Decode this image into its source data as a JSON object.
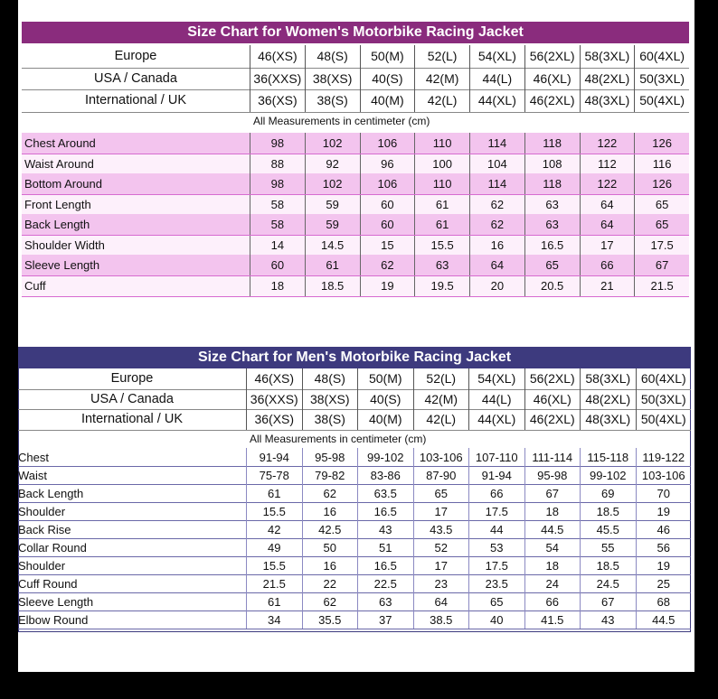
{
  "women": {
    "title": "Size Chart for Women's Motorbike Racing Jacket",
    "header_rows": [
      {
        "label": "Europe",
        "sizes": [
          "46(XS)",
          "48(S)",
          "50(M)",
          "52(L)",
          "54(XL)",
          "56(2XL)",
          "58(3XL)",
          "60(4XL)"
        ]
      },
      {
        "label": "USA / Canada",
        "sizes": [
          "36(XXS)",
          "38(XS)",
          "40(S)",
          "42(M)",
          "44(L)",
          "46(XL)",
          "48(2XL)",
          "50(3XL)"
        ]
      },
      {
        "label": "International / UK",
        "sizes": [
          "36(XS)",
          "38(S)",
          "40(M)",
          "42(L)",
          "44(XL)",
          "46(2XL)",
          "48(3XL)",
          "50(4XL)"
        ]
      }
    ],
    "note": "All Measurements in centimeter (cm)",
    "rows": [
      {
        "label": "Chest Around",
        "values": [
          "98",
          "102",
          "106",
          "110",
          "114",
          "118",
          "122",
          "126"
        ]
      },
      {
        "label": "Waist Around",
        "values": [
          "88",
          "92",
          "96",
          "100",
          "104",
          "108",
          "112",
          "116"
        ]
      },
      {
        "label": "Bottom Around",
        "values": [
          "98",
          "102",
          "106",
          "110",
          "114",
          "118",
          "122",
          "126"
        ]
      },
      {
        "label": "Front Length",
        "values": [
          "58",
          "59",
          "60",
          "61",
          "62",
          "63",
          "64",
          "65"
        ]
      },
      {
        "label": "Back Length",
        "values": [
          "58",
          "59",
          "60",
          "61",
          "62",
          "63",
          "64",
          "65"
        ]
      },
      {
        "label": "Shoulder Width",
        "values": [
          "14",
          "14.5",
          "15",
          "15.5",
          "16",
          "16.5",
          "17",
          "17.5"
        ]
      },
      {
        "label": "Sleeve Length",
        "values": [
          "60",
          "61",
          "62",
          "63",
          "64",
          "65",
          "66",
          "67"
        ]
      },
      {
        "label": "Cuff",
        "values": [
          "18",
          "18.5",
          "19",
          "19.5",
          "20",
          "20.5",
          "21",
          "21.5"
        ]
      }
    ]
  },
  "men": {
    "title": "Size Chart for Men's Motorbike Racing Jacket",
    "header_rows": [
      {
        "label": "Europe",
        "sizes": [
          "46(XS)",
          "48(S)",
          "50(M)",
          "52(L)",
          "54(XL)",
          "56(2XL)",
          "58(3XL)",
          "60(4XL)"
        ]
      },
      {
        "label": "USA / Canada",
        "sizes": [
          "36(XXS)",
          "38(XS)",
          "40(S)",
          "42(M)",
          "44(L)",
          "46(XL)",
          "48(2XL)",
          "50(3XL)"
        ]
      },
      {
        "label": "International / UK",
        "sizes": [
          "36(XS)",
          "38(S)",
          "40(M)",
          "42(L)",
          "44(XL)",
          "46(2XL)",
          "48(3XL)",
          "50(4XL)"
        ]
      }
    ],
    "note": "All Measurements in centimeter (cm)",
    "rows": [
      {
        "label": "Chest",
        "values": [
          "91-94",
          "95-98",
          "99-102",
          "103-106",
          "107-110",
          "111-114",
          "115-118",
          "119-122"
        ]
      },
      {
        "label": "Waist",
        "values": [
          "75-78",
          "79-82",
          "83-86",
          "87-90",
          "91-94",
          "95-98",
          "99-102",
          "103-106"
        ]
      },
      {
        "label": "Back Length",
        "values": [
          "61",
          "62",
          "63.5",
          "65",
          "66",
          "67",
          "69",
          "70"
        ]
      },
      {
        "label": "Shoulder",
        "values": [
          "15.5",
          "16",
          "16.5",
          "17",
          "17.5",
          "18",
          "18.5",
          "19"
        ]
      },
      {
        "label": "Back Rise",
        "values": [
          "42",
          "42.5",
          "43",
          "43.5",
          "44",
          "44.5",
          "45.5",
          "46"
        ]
      },
      {
        "label": "Collar Round",
        "values": [
          "49",
          "50",
          "51",
          "52",
          "53",
          "54",
          "55",
          "56"
        ]
      },
      {
        "label": "Shoulder",
        "values": [
          "15.5",
          "16",
          "16.5",
          "17",
          "17.5",
          "18",
          "18.5",
          "19"
        ]
      },
      {
        "label": "Cuff Round",
        "values": [
          "21.5",
          "22",
          "22.5",
          "23",
          "23.5",
          "24",
          "24.5",
          "25"
        ]
      },
      {
        "label": "Sleeve Length",
        "values": [
          "61",
          "62",
          "63",
          "64",
          "65",
          "66",
          "67",
          "68"
        ]
      },
      {
        "label": "Elbow Round",
        "values": [
          "34",
          "35.5",
          "37",
          "38.5",
          "40",
          "41.5",
          "43",
          "44.5"
        ]
      }
    ]
  },
  "colors": {
    "women_accent": "#8a2c7d",
    "women_row": "#f3c4ee",
    "men_accent": "#3d3a7e"
  }
}
